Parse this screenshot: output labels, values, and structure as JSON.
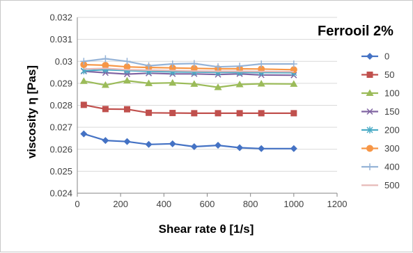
{
  "chart_data": {
    "type": "line",
    "title": "Ferrooil 2%",
    "xlabel": "Shear rate θ [1/s]",
    "ylabel": "viscosity η [Pas]",
    "xlim": [
      0,
      1200
    ],
    "ylim": [
      0.024,
      0.032
    ],
    "x_ticks": [
      "0",
      "200",
      "400",
      "600",
      "800",
      "1000",
      "1200"
    ],
    "y_ticks": [
      "0.024",
      "0.025",
      "0.026",
      "0.027",
      "0.028",
      "0.029",
      "0.03",
      "0.031",
      "0.032"
    ],
    "grid": "horizontal",
    "legend_position": "right",
    "x": [
      30,
      130,
      230,
      330,
      440,
      540,
      650,
      750,
      850,
      1000
    ],
    "series": [
      {
        "name": "0",
        "color": "#4472C4",
        "marker": "diamond",
        "values": [
          0.0267,
          0.0264,
          0.02635,
          0.02622,
          0.02625,
          0.02612,
          0.02618,
          0.02607,
          0.02603,
          0.02603
        ]
      },
      {
        "name": "50",
        "color": "#C0504D",
        "marker": "square",
        "values": [
          0.02802,
          0.02783,
          0.02782,
          0.02766,
          0.02765,
          0.02764,
          0.02764,
          0.02764,
          0.02764,
          0.02764
        ]
      },
      {
        "name": "100",
        "color": "#9BBB59",
        "marker": "triangle",
        "values": [
          0.0291,
          0.02892,
          0.02912,
          0.029,
          0.02902,
          0.02897,
          0.02882,
          0.02895,
          0.02898,
          0.02897
        ]
      },
      {
        "name": "150",
        "color": "#8064A2",
        "marker": "x",
        "values": [
          0.02955,
          0.02948,
          0.02942,
          0.02946,
          0.02943,
          0.02943,
          0.0294,
          0.02943,
          0.02938,
          0.02937
        ]
      },
      {
        "name": "200",
        "color": "#4BACC6",
        "marker": "star",
        "values": [
          0.02957,
          0.02962,
          0.02958,
          0.02955,
          0.02952,
          0.02951,
          0.0295,
          0.0295,
          0.02949,
          0.02948
        ]
      },
      {
        "name": "300",
        "color": "#F79646",
        "marker": "circle",
        "values": [
          0.02985,
          0.02982,
          0.02975,
          0.02972,
          0.0297,
          0.02968,
          0.02966,
          0.02966,
          0.02965,
          0.02962
        ]
      },
      {
        "name": "400",
        "color": "#95B3D7",
        "marker": "plus",
        "values": [
          0.03,
          0.03012,
          0.03,
          0.0298,
          0.02988,
          0.0299,
          0.02975,
          0.02978,
          0.02988,
          0.02988
        ]
      },
      {
        "name": "500",
        "color": "#E6B9B8",
        "marker": "none",
        "values": [
          0.02965,
          0.02968,
          0.02962,
          0.0296,
          0.02958,
          0.02956,
          0.02955,
          0.02955,
          0.02954,
          0.02953
        ]
      }
    ]
  }
}
